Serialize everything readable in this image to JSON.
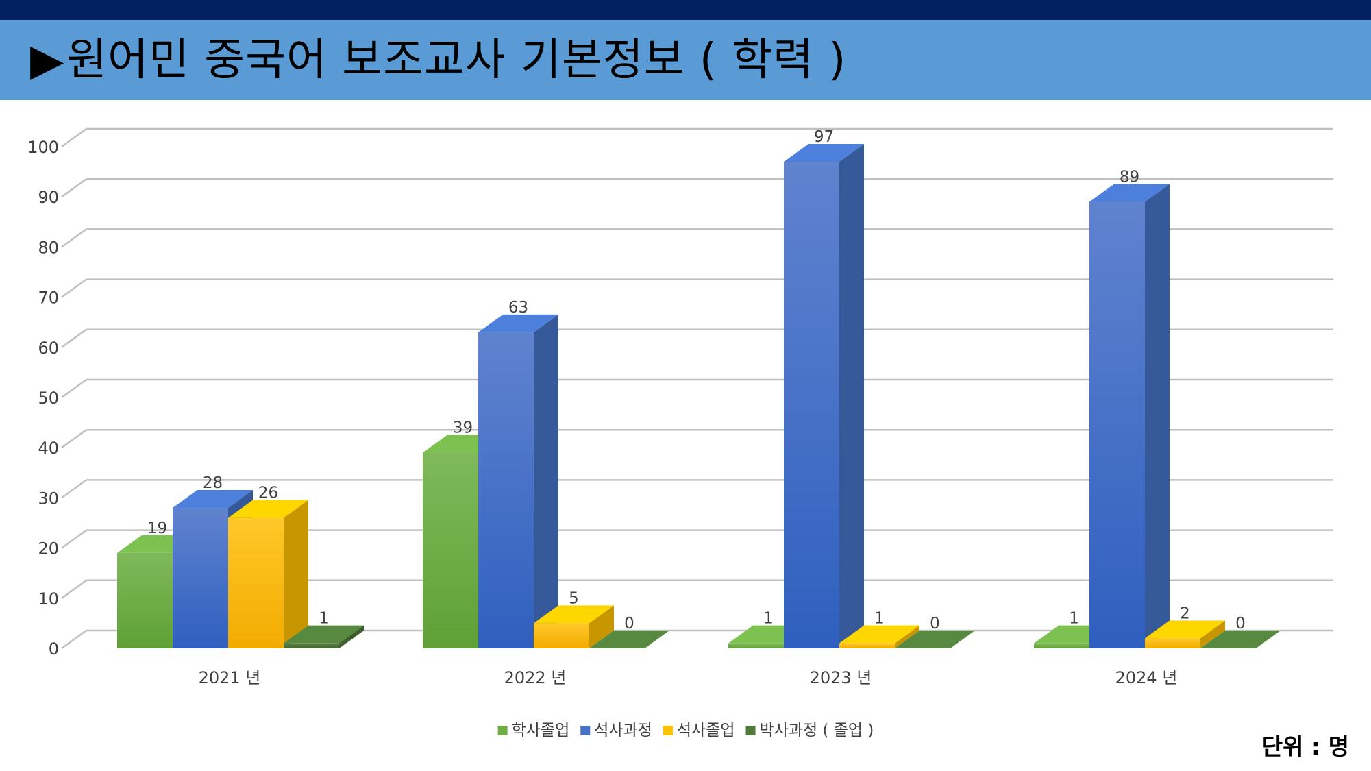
{
  "header": {
    "arrow": "▶",
    "title": "원어민 중국어 보조교사 기본정보 ( 학력 )"
  },
  "unit_label": "단위 :  명",
  "colors": {
    "top_bar": "#002060",
    "title_bar": "#5b9bd5"
  },
  "chart_data": {
    "type": "bar",
    "categories": [
      "2021 년",
      "2022 년",
      "2023 년",
      "2024 년"
    ],
    "series": [
      {
        "name": "학사졸업",
        "color": "#70ad47",
        "values": [
          19,
          39,
          1,
          1
        ]
      },
      {
        "name": "석사과정",
        "color": "#4472c4",
        "values": [
          28,
          63,
          97,
          89
        ]
      },
      {
        "name": "석사졸업",
        "color": "#ffc000",
        "values": [
          26,
          5,
          1,
          2
        ]
      },
      {
        "name": "박사과정 ( 졸업 )",
        "color": "#4f7a3a",
        "values": [
          1,
          0,
          0,
          0
        ]
      }
    ],
    "ylim": [
      0,
      100
    ],
    "yticks": [
      "0",
      "10",
      "20",
      "30",
      "40",
      "50",
      "60",
      "70",
      "80",
      "90",
      "100"
    ],
    "grid": true,
    "legend_position": "bottom",
    "style": "3d-clustered-column"
  }
}
